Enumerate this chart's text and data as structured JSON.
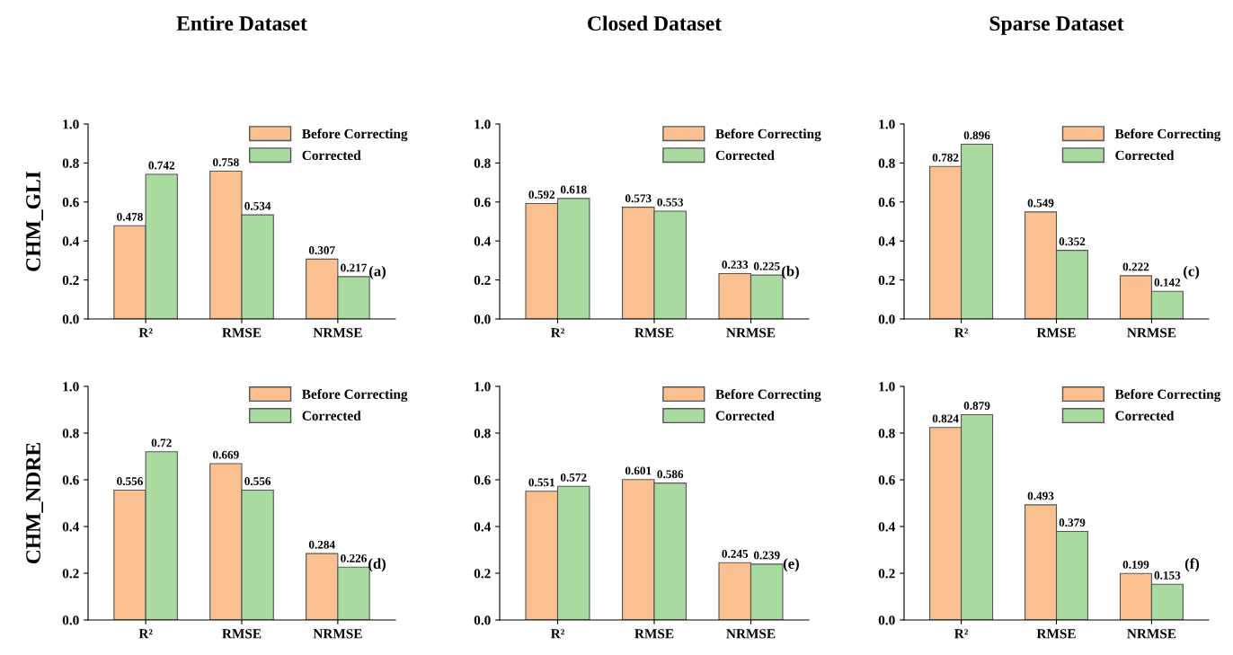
{
  "chart_data": [
    {
      "type": "bar",
      "title": "Entire Dataset",
      "ylabel": "CHM_GLI",
      "categories": [
        "R²",
        "RMSE",
        "NRMSE"
      ],
      "series": [
        {
          "name": "Before Correcting",
          "color": "#fac090",
          "values": [
            0.478,
            0.758,
            0.307
          ]
        },
        {
          "name": "Corrected",
          "color": "#a9dba1",
          "values": [
            0.742,
            0.534,
            0.217
          ]
        }
      ],
      "ylim": [
        0,
        1
      ],
      "yticks": [
        {
          "value": 0,
          "label": "0.0"
        },
        {
          "value": 0.2,
          "label": "0.2"
        },
        {
          "value": 0.4,
          "label": "0.4"
        },
        {
          "value": 0.6,
          "label": "0.6"
        },
        {
          "value": 0.8,
          "label": "0.8"
        },
        {
          "value": 1,
          "label": "1.0"
        }
      ],
      "data_labels": true,
      "legend": "top right",
      "grid": false,
      "annotations": [
        "(a)"
      ]
    },
    {
      "type": "bar",
      "title": "Closed Dataset",
      "categories": [
        "R²",
        "RMSE",
        "NRMSE"
      ],
      "series": [
        {
          "name": "Before Correcting",
          "color": "#fac090",
          "values": [
            0.592,
            0.573,
            0.233
          ]
        },
        {
          "name": "Corrected",
          "color": "#a9dba1",
          "values": [
            0.618,
            0.553,
            0.225
          ]
        }
      ],
      "ylim": [
        0,
        1
      ],
      "yticks": [
        {
          "value": 0,
          "label": "0.0"
        },
        {
          "value": 0.2,
          "label": "0.2"
        },
        {
          "value": 0.4,
          "label": "0.4"
        },
        {
          "value": 0.6,
          "label": "0.6"
        },
        {
          "value": 0.8,
          "label": "0.8"
        },
        {
          "value": 1,
          "label": "1.0"
        }
      ],
      "data_labels": true,
      "legend": "top right",
      "grid": false,
      "annotations": [
        "(b)"
      ]
    },
    {
      "type": "bar",
      "title": "Sparse Dataset",
      "categories": [
        "R²",
        "RMSE",
        "NRMSE"
      ],
      "series": [
        {
          "name": "Before Correcting",
          "color": "#fac090",
          "values": [
            0.782,
            0.549,
            0.222
          ]
        },
        {
          "name": "Corrected",
          "color": "#a9dba1",
          "values": [
            0.896,
            0.352,
            0.142
          ]
        }
      ],
      "ylim": [
        0,
        1
      ],
      "yticks": [
        {
          "value": 0,
          "label": "0.0"
        },
        {
          "value": 0.2,
          "label": "0.2"
        },
        {
          "value": 0.4,
          "label": "0.4"
        },
        {
          "value": 0.6,
          "label": "0.6"
        },
        {
          "value": 0.8,
          "label": "0.8"
        },
        {
          "value": 1,
          "label": "1.0"
        }
      ],
      "data_labels": true,
      "legend": "top right",
      "grid": false,
      "annotations": [
        "(c)"
      ]
    },
    {
      "type": "bar",
      "ylabel": "CHM_NDRE",
      "categories": [
        "R²",
        "RMSE",
        "NRMSE"
      ],
      "series": [
        {
          "name": "Before Correcting",
          "color": "#fac090",
          "values": [
            0.556,
            0.669,
            0.284
          ]
        },
        {
          "name": "Corrected",
          "color": "#a9dba1",
          "values": [
            0.72,
            0.556,
            0.226
          ]
        }
      ],
      "ylim": [
        0,
        1
      ],
      "yticks": [
        {
          "value": 0,
          "label": "0.0"
        },
        {
          "value": 0.2,
          "label": "0.2"
        },
        {
          "value": 0.4,
          "label": "0.4"
        },
        {
          "value": 0.6,
          "label": "0.6"
        },
        {
          "value": 0.8,
          "label": "0.8"
        },
        {
          "value": 1,
          "label": "1.0"
        }
      ],
      "data_labels": true,
      "legend": "top right",
      "grid": false,
      "annotations": [
        "(d)"
      ]
    },
    {
      "type": "bar",
      "categories": [
        "R²",
        "RMSE",
        "NRMSE"
      ],
      "series": [
        {
          "name": "Before Correcting",
          "color": "#fac090",
          "values": [
            0.551,
            0.601,
            0.245
          ]
        },
        {
          "name": "Corrected",
          "color": "#a9dba1",
          "values": [
            0.572,
            0.586,
            0.239
          ]
        }
      ],
      "ylim": [
        0,
        1
      ],
      "yticks": [
        {
          "value": 0,
          "label": "0.0"
        },
        {
          "value": 0.2,
          "label": "0.2"
        },
        {
          "value": 0.4,
          "label": "0.4"
        },
        {
          "value": 0.6,
          "label": "0.6"
        },
        {
          "value": 0.8,
          "label": "0.8"
        },
        {
          "value": 1,
          "label": "1.0"
        }
      ],
      "data_labels": true,
      "legend": "top right",
      "grid": false,
      "annotations": [
        "(e)"
      ]
    },
    {
      "type": "bar",
      "categories": [
        "R²",
        "RMSE",
        "NRMSE"
      ],
      "series": [
        {
          "name": "Before Correcting",
          "color": "#fac090",
          "values": [
            0.824,
            0.493,
            0.199
          ]
        },
        {
          "name": "Corrected",
          "color": "#a9dba1",
          "values": [
            0.879,
            0.379,
            0.153
          ]
        }
      ],
      "ylim": [
        0,
        1
      ],
      "yticks": [
        {
          "value": 0,
          "label": "0.0"
        },
        {
          "value": 0.2,
          "label": "0.2"
        },
        {
          "value": 0.4,
          "label": "0.4"
        },
        {
          "value": 0.6,
          "label": "0.6"
        },
        {
          "value": 0.8,
          "label": "0.8"
        },
        {
          "value": 1,
          "label": "1.0"
        }
      ],
      "data_labels": true,
      "legend": "top right",
      "grid": false,
      "annotations": [
        "(f)"
      ]
    }
  ]
}
